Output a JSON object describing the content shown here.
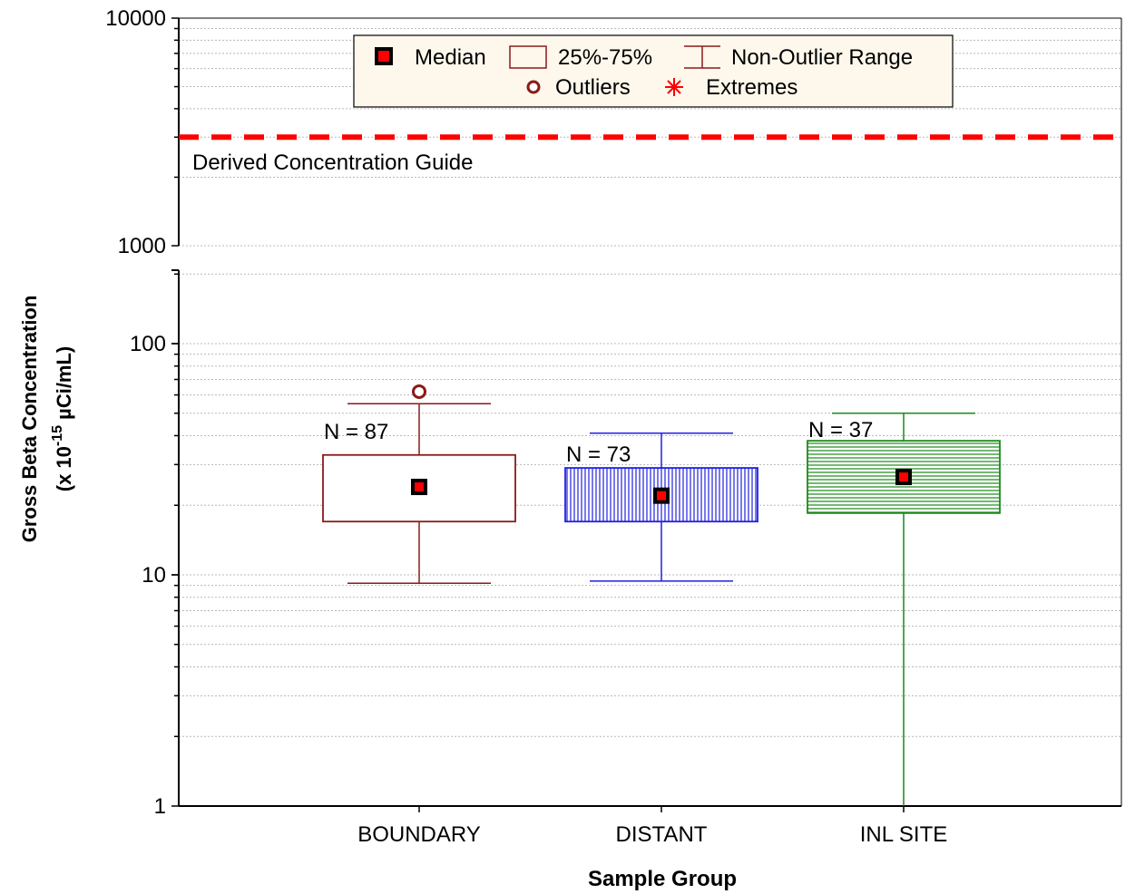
{
  "chart_data": {
    "type": "box",
    "xlabel": "Sample Group",
    "ylabel_line1": "Gross Beta Concentration",
    "ylabel_line2_prefix": "(x 10",
    "ylabel_line2_exp": "-15",
    "ylabel_line2_suffix": " µCi/mL)",
    "y_scale": "log (broken axis)",
    "lower_ylim": [
      1,
      200
    ],
    "upper_ylim": [
      1000,
      10000
    ],
    "lower_ticks": [
      "1",
      "10",
      "100"
    ],
    "upper_ticks": [
      "1000",
      "10000"
    ],
    "grid": true,
    "legend": {
      "position": "top-center",
      "median": "Median",
      "box": "25%-75%",
      "range": "Non-Outlier Range",
      "outliers": "Outliers",
      "extremes": "Extremes"
    },
    "reference_line": {
      "label": "Derived Concentration Guide",
      "value": 3000,
      "color": "#ff0000"
    },
    "groups": [
      {
        "name": "BOUNDARY",
        "n_label": "N = 87",
        "median": 24,
        "q1": 17,
        "q3": 33,
        "whisker_low": 9.2,
        "whisker_high": 55,
        "outliers": [
          62
        ],
        "color": "#8b1a1a",
        "fill": "none"
      },
      {
        "name": "DISTANT",
        "n_label": "N = 73",
        "median": 22,
        "q1": 17,
        "q3": 29,
        "whisker_low": 9.4,
        "whisker_high": 41,
        "outliers": [],
        "color": "#2020e0",
        "fill": "vertical-hatch"
      },
      {
        "name": "INL SITE",
        "n_label": "N = 37",
        "median": 26.5,
        "q1": 18.5,
        "q3": 38,
        "whisker_low": 1.0,
        "whisker_high": 50,
        "outliers": [],
        "color": "#1a8a1a",
        "fill": "horizontal-hatch"
      }
    ]
  }
}
